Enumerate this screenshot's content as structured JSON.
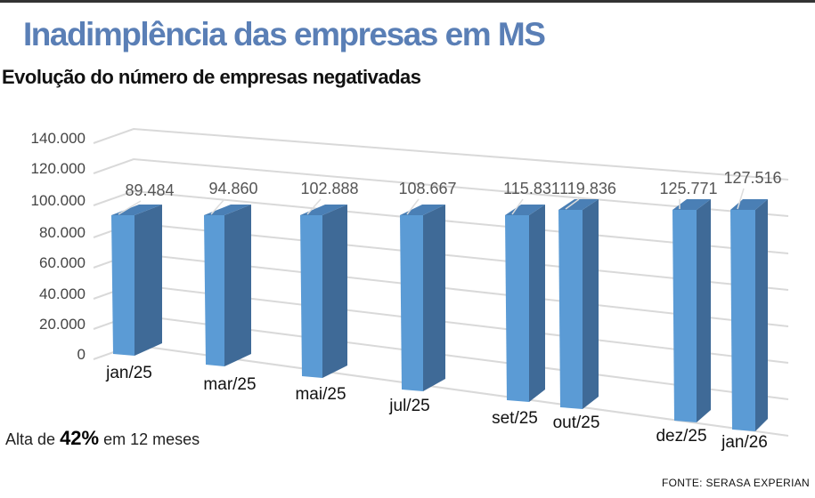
{
  "title": "Inadimplência das empresas em MS",
  "subtitle": "Evolução do número de empresas negativadas",
  "note": {
    "prefix": "Alta de",
    "highlight": "42%",
    "suffix": "em 12 meses"
  },
  "source": "FONTE: SERASA EXPERIAN",
  "colors": {
    "title": "#5a7fb6",
    "bar_front": "#5b9bd5",
    "bar_side": "#3f6a97",
    "bar_top": "#4a7fb5"
  },
  "chart_data": {
    "type": "bar",
    "style": "3d-perspective",
    "categories": [
      "jan/25",
      "mar/25",
      "mai/25",
      "jul/25",
      "set/25",
      "out/25",
      "dez/25",
      "jan/26"
    ],
    "values": [
      89484,
      94860,
      102888,
      108667,
      115831,
      119836,
      125771,
      127516
    ],
    "value_labels": [
      "89.484",
      "94.860",
      "102.888",
      "108.667",
      "115.831",
      "119.836",
      "125.771",
      "127.516"
    ],
    "y_ticks": [
      "0",
      "20.000",
      "40.000",
      "60.000",
      "80.000",
      "100.000",
      "120.000",
      "140.000"
    ],
    "ylim": [
      0,
      140000
    ],
    "grid": true
  }
}
